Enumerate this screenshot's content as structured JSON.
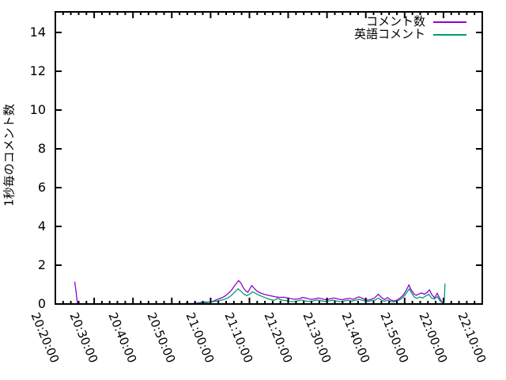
{
  "chart_data": {
    "type": "line",
    "title": "",
    "xlabel": "",
    "ylabel": "1秒毎のコメント数",
    "grid": false,
    "legend_position": "top-right-inside",
    "x_tick_labels": [
      "20:20:00",
      "20:30:00",
      "20:40:00",
      "20:50:00",
      "21:00:00",
      "21:10:00",
      "21:20:00",
      "21:30:00",
      "21:40:00",
      "21:50:00",
      "22:00:00",
      "22:10:00"
    ],
    "x_major_tick_interval_minutes": 10,
    "x_minor_tick_interval_minutes": 2,
    "x_range_minutes": [
      0,
      110
    ],
    "y_ticks": [
      0,
      2,
      4,
      6,
      8,
      10,
      12,
      14
    ],
    "ylim": [
      0,
      15.06
    ],
    "axis_color": "#000000",
    "series": [
      {
        "name": "コメント数",
        "color": "#9400D3",
        "points": [
          [
            5.0,
            1.15
          ],
          [
            5.4,
            0.55
          ],
          [
            5.7,
            0
          ],
          [
            8,
            0
          ],
          [
            12,
            0
          ],
          [
            16,
            0
          ],
          [
            20,
            0
          ],
          [
            24,
            0
          ],
          [
            28,
            0
          ],
          [
            32,
            0
          ],
          [
            33.5,
            0
          ],
          [
            33.9,
            0.08
          ],
          [
            34.4,
            0.02
          ],
          [
            35.5,
            0.03
          ],
          [
            36.5,
            0.05
          ],
          [
            37.5,
            0.08
          ],
          [
            38.5,
            0.1
          ],
          [
            39.5,
            0.1
          ],
          [
            40.5,
            0.13
          ],
          [
            41.3,
            0.2
          ],
          [
            42.2,
            0.27
          ],
          [
            43.0,
            0.33
          ],
          [
            43.8,
            0.42
          ],
          [
            44.6,
            0.55
          ],
          [
            45.4,
            0.72
          ],
          [
            46.2,
            0.95
          ],
          [
            47.2,
            1.21
          ],
          [
            47.8,
            1.08
          ],
          [
            48.4,
            0.85
          ],
          [
            49.0,
            0.68
          ],
          [
            49.6,
            0.61
          ],
          [
            50.1,
            0.78
          ],
          [
            50.6,
            0.95
          ],
          [
            51.2,
            0.82
          ],
          [
            51.9,
            0.67
          ],
          [
            52.8,
            0.57
          ],
          [
            53.8,
            0.5
          ],
          [
            54.8,
            0.45
          ],
          [
            55.8,
            0.41
          ],
          [
            56.8,
            0.37
          ],
          [
            57.8,
            0.34
          ],
          [
            58.8,
            0.35
          ],
          [
            59.8,
            0.31
          ],
          [
            60.8,
            0.27
          ],
          [
            61.8,
            0.24
          ],
          [
            62.8,
            0.27
          ],
          [
            63.8,
            0.34
          ],
          [
            64.8,
            0.29
          ],
          [
            65.8,
            0.24
          ],
          [
            66.8,
            0.26
          ],
          [
            67.8,
            0.31
          ],
          [
            68.8,
            0.26
          ],
          [
            69.8,
            0.22
          ],
          [
            70.8,
            0.27
          ],
          [
            71.8,
            0.31
          ],
          [
            72.8,
            0.26
          ],
          [
            73.8,
            0.22
          ],
          [
            74.8,
            0.26
          ],
          [
            75.8,
            0.29
          ],
          [
            76.8,
            0.24
          ],
          [
            77.4,
            0.3
          ],
          [
            78.2,
            0.37
          ],
          [
            79.0,
            0.3
          ],
          [
            79.8,
            0.23
          ],
          [
            80.6,
            0.2
          ],
          [
            81.4,
            0.25
          ],
          [
            82.2,
            0.3
          ],
          [
            83.2,
            0.5
          ],
          [
            84.0,
            0.34
          ],
          [
            84.8,
            0.23
          ],
          [
            85.6,
            0.33
          ],
          [
            86.4,
            0.21
          ],
          [
            87.2,
            0.16
          ],
          [
            88.0,
            0.2
          ],
          [
            88.8,
            0.3
          ],
          [
            89.6,
            0.45
          ],
          [
            90.4,
            0.7
          ],
          [
            91.1,
            0.98
          ],
          [
            91.7,
            0.72
          ],
          [
            92.4,
            0.52
          ],
          [
            93.0,
            0.45
          ],
          [
            93.7,
            0.52
          ],
          [
            94.4,
            0.57
          ],
          [
            95.1,
            0.5
          ],
          [
            95.8,
            0.6
          ],
          [
            96.4,
            0.73
          ],
          [
            97.0,
            0.48
          ],
          [
            97.7,
            0.32
          ],
          [
            98.4,
            0.55
          ],
          [
            99.0,
            0.3
          ],
          [
            99.5,
            0.12
          ],
          [
            99.9,
            0.02
          ]
        ]
      },
      {
        "name": "英語コメント",
        "color": "#009E73",
        "points": [
          [
            33.5,
            0
          ],
          [
            35,
            0.01
          ],
          [
            36.5,
            0.03
          ],
          [
            38,
            0.06
          ],
          [
            39.5,
            0.08
          ],
          [
            40.7,
            0.12
          ],
          [
            41.7,
            0.15
          ],
          [
            42.7,
            0.19
          ],
          [
            43.6,
            0.24
          ],
          [
            44.5,
            0.32
          ],
          [
            45.4,
            0.45
          ],
          [
            46.2,
            0.62
          ],
          [
            47.1,
            0.78
          ],
          [
            47.8,
            0.66
          ],
          [
            48.5,
            0.52
          ],
          [
            49.3,
            0.43
          ],
          [
            50.0,
            0.5
          ],
          [
            50.8,
            0.63
          ],
          [
            51.5,
            0.56
          ],
          [
            52.4,
            0.46
          ],
          [
            53.4,
            0.38
          ],
          [
            54.4,
            0.3
          ],
          [
            55.4,
            0.23
          ],
          [
            56.4,
            0.19
          ],
          [
            57.2,
            0.29
          ],
          [
            58.2,
            0.21
          ],
          [
            59.4,
            0.17
          ],
          [
            60.4,
            0.14
          ],
          [
            61.4,
            0.12
          ],
          [
            62.4,
            0.16
          ],
          [
            63.4,
            0.21
          ],
          [
            64.4,
            0.16
          ],
          [
            65.4,
            0.13
          ],
          [
            66.4,
            0.16
          ],
          [
            67.4,
            0.21
          ],
          [
            68.4,
            0.17
          ],
          [
            69.4,
            0.13
          ],
          [
            70.4,
            0.16
          ],
          [
            71.4,
            0.2
          ],
          [
            72.4,
            0.16
          ],
          [
            73.4,
            0.12
          ],
          [
            74.4,
            0.16
          ],
          [
            75.4,
            0.19
          ],
          [
            76.4,
            0.15
          ],
          [
            77.4,
            0.2
          ],
          [
            78.2,
            0.24
          ],
          [
            79.0,
            0.19
          ],
          [
            79.8,
            0.15
          ],
          [
            80.6,
            0.13
          ],
          [
            81.4,
            0.17
          ],
          [
            82.4,
            0.2
          ],
          [
            83.2,
            0.3
          ],
          [
            84.0,
            0.2
          ],
          [
            84.8,
            0.14
          ],
          [
            85.6,
            0.2
          ],
          [
            86.4,
            0.13
          ],
          [
            87.2,
            0.1
          ],
          [
            88.0,
            0.15
          ],
          [
            88.8,
            0.22
          ],
          [
            89.6,
            0.35
          ],
          [
            90.4,
            0.55
          ],
          [
            91.2,
            0.78
          ],
          [
            91.8,
            0.56
          ],
          [
            92.5,
            0.36
          ],
          [
            93.2,
            0.29
          ],
          [
            93.9,
            0.36
          ],
          [
            94.6,
            0.31
          ],
          [
            95.4,
            0.41
          ],
          [
            96.2,
            0.5
          ],
          [
            96.9,
            0.31
          ],
          [
            97.7,
            0.25
          ],
          [
            98.4,
            0.38
          ],
          [
            99.1,
            0.16
          ],
          [
            99.6,
            0.08
          ],
          [
            100.2,
            0.12
          ],
          [
            100.4,
            1.05
          ]
        ]
      }
    ]
  }
}
